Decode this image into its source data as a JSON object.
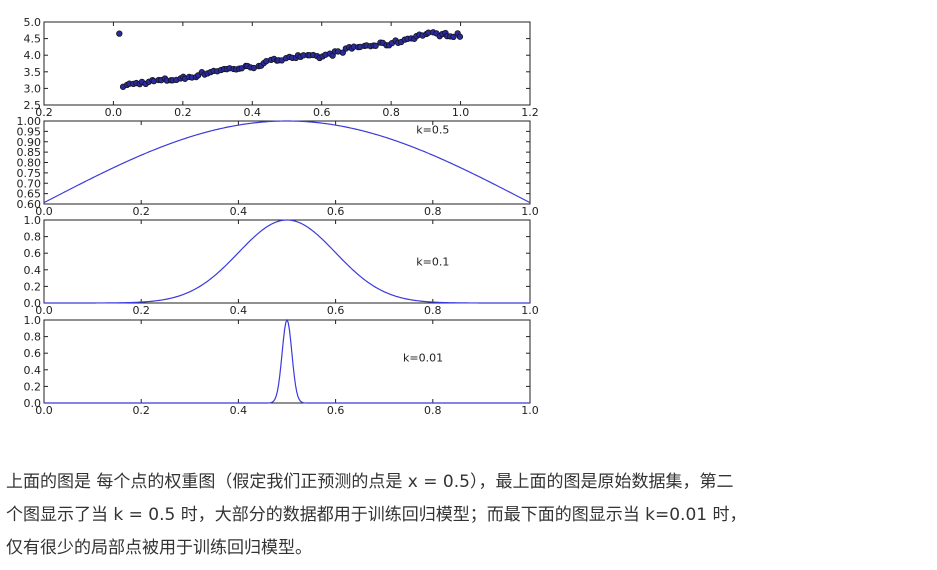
{
  "chart_data": [
    {
      "type": "scatter",
      "xlim": [
        -0.2,
        1.2
      ],
      "ylim": [
        2.5,
        5.0
      ],
      "xticks": [
        "0.2",
        "0.0",
        "0.2",
        "0.4",
        "0.6",
        "0.8",
        "1.0",
        "1.2"
      ],
      "yticks": [
        "2.5",
        "3.0",
        "3.5",
        "4.0",
        "4.5",
        "5.0"
      ],
      "marker_color": "#2a2a9a",
      "trend": {
        "x": [
          0.02,
          0.1,
          0.2,
          0.3,
          0.4,
          0.5,
          0.6,
          0.7,
          0.8,
          0.9,
          1.0
        ],
        "y": [
          3.07,
          3.2,
          3.3,
          3.55,
          3.65,
          3.95,
          3.95,
          4.25,
          4.35,
          4.65,
          4.6
        ]
      },
      "point_count": 110,
      "grid": false
    },
    {
      "type": "line",
      "k": 0.5,
      "annotation": "k=0.5",
      "annotation_at": [
        0.8,
        0.9
      ],
      "xlim": [
        0.0,
        1.0
      ],
      "ylim": [
        0.6,
        1.0
      ],
      "xticks": [
        "0.0",
        "0.2",
        "0.4",
        "0.6",
        "0.8",
        "1.0"
      ],
      "yticks": [
        "0.60",
        "0.65",
        "0.70",
        "0.75",
        "0.80",
        "0.85",
        "0.90",
        "0.95",
        "1.00"
      ],
      "line_color": "#3b3bdb",
      "grid": false
    },
    {
      "type": "line",
      "k": 0.1,
      "annotation": "k=0.1",
      "annotation_at": [
        0.8,
        0.5
      ],
      "xlim": [
        0.0,
        1.0
      ],
      "ylim": [
        0.0,
        1.0
      ],
      "xticks": [
        "0.0",
        "0.2",
        "0.4",
        "0.6",
        "0.8",
        "1.0"
      ],
      "yticks": [
        "0.0",
        "0.2",
        "0.4",
        "0.6",
        "0.8",
        "1.0"
      ],
      "line_color": "#3b3bdb",
      "grid": false
    },
    {
      "type": "line",
      "k": 0.01,
      "annotation": "k=0.01",
      "annotation_at": [
        0.78,
        0.55
      ],
      "xlim": [
        0.0,
        1.0
      ],
      "ylim": [
        0.0,
        1.0
      ],
      "xticks": [
        "0.0",
        "0.2",
        "0.4",
        "0.6",
        "0.8",
        "1.0"
      ],
      "yticks": [
        "0.0",
        "0.2",
        "0.4",
        "0.6",
        "0.8",
        "1.0"
      ],
      "line_color": "#3b3bdb",
      "grid": false
    }
  ],
  "caption": {
    "line1": "上面的图是 每个点的权重图（假定我们正预测的点是 x = 0.5），最上面的图是原始数据集，第二",
    "line2": "个图显示了当 k = 0.5 时，大部分的数据都用于训练回归模型；而最下面的图显示当 k=0.01 时，",
    "line3": "仅有很少的局部点被用于训练回归模型。"
  },
  "colors": {
    "text": "#333333",
    "axis": "#222222"
  }
}
